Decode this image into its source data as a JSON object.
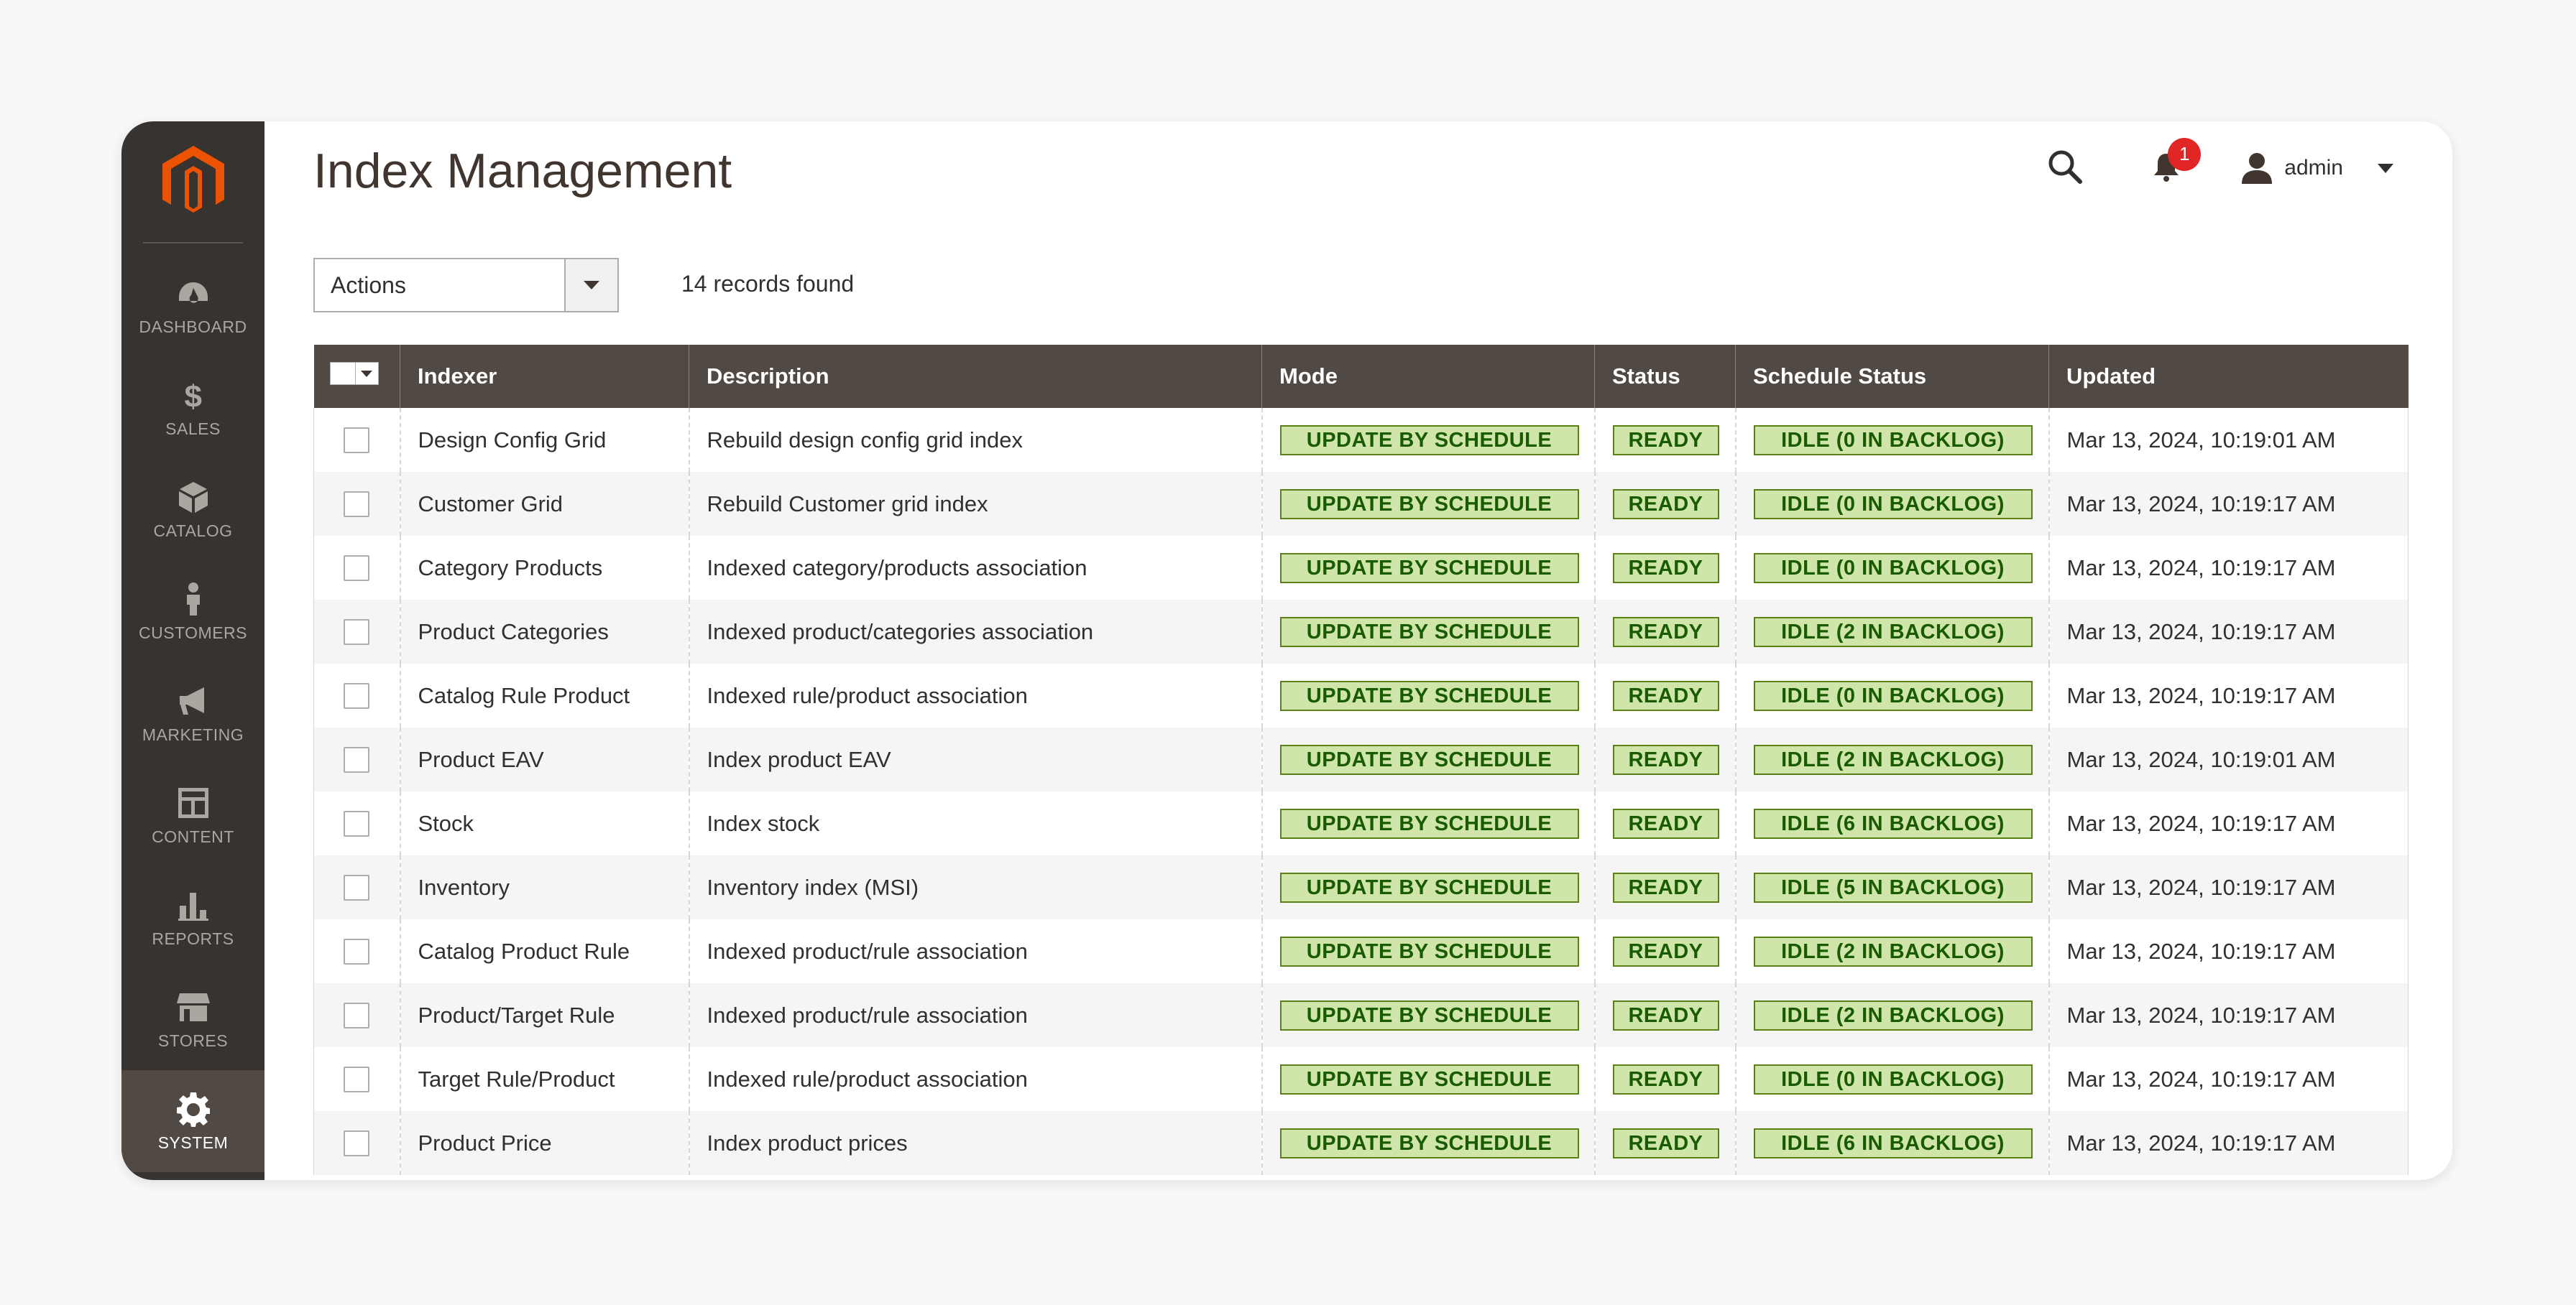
{
  "sidebar": {
    "items": [
      {
        "key": "dashboard",
        "label": "DASHBOARD",
        "icon": "dashboard-gauge-icon"
      },
      {
        "key": "sales",
        "label": "SALES",
        "icon": "dollar-icon"
      },
      {
        "key": "catalog",
        "label": "CATALOG",
        "icon": "box-icon"
      },
      {
        "key": "customers",
        "label": "CUSTOMERS",
        "icon": "person-icon"
      },
      {
        "key": "marketing",
        "label": "MARKETING",
        "icon": "megaphone-icon"
      },
      {
        "key": "content",
        "label": "CONTENT",
        "icon": "layout-icon"
      },
      {
        "key": "reports",
        "label": "REPORTS",
        "icon": "bar-chart-icon"
      },
      {
        "key": "stores",
        "label": "STORES",
        "icon": "storefront-icon"
      },
      {
        "key": "system",
        "label": "SYSTEM",
        "icon": "gear-icon",
        "active": true
      }
    ]
  },
  "header": {
    "title": "Index Management",
    "notifications_count": "1",
    "user_name": "admin"
  },
  "toolbar": {
    "actions_label": "Actions",
    "records_found": "14 records found"
  },
  "grid": {
    "columns": [
      "Indexer",
      "Description",
      "Mode",
      "Status",
      "Schedule Status",
      "Updated"
    ],
    "rows": [
      {
        "indexer": "Design Config Grid",
        "description": "Rebuild design config grid index",
        "mode": "UPDATE BY SCHEDULE",
        "status": "READY",
        "schedule": "IDLE (0 IN BACKLOG)",
        "updated": "Mar 13, 2024, 10:19:01 AM"
      },
      {
        "indexer": "Customer Grid",
        "description": "Rebuild Customer grid index",
        "mode": "UPDATE BY SCHEDULE",
        "status": "READY",
        "schedule": "IDLE (0 IN BACKLOG)",
        "updated": "Mar 13, 2024, 10:19:17 AM"
      },
      {
        "indexer": "Category Products",
        "description": "Indexed category/products association",
        "mode": "UPDATE BY SCHEDULE",
        "status": "READY",
        "schedule": "IDLE (0 IN BACKLOG)",
        "updated": "Mar 13, 2024, 10:19:17 AM"
      },
      {
        "indexer": "Product Categories",
        "description": "Indexed product/categories association",
        "mode": "UPDATE BY SCHEDULE",
        "status": "READY",
        "schedule": "IDLE (2 IN BACKLOG)",
        "updated": "Mar 13, 2024, 10:19:17 AM"
      },
      {
        "indexer": "Catalog Rule Product",
        "description": "Indexed rule/product association",
        "mode": "UPDATE BY SCHEDULE",
        "status": "READY",
        "schedule": "IDLE (0 IN BACKLOG)",
        "updated": "Mar 13, 2024, 10:19:17 AM"
      },
      {
        "indexer": "Product EAV",
        "description": "Index product EAV",
        "mode": "UPDATE BY SCHEDULE",
        "status": "READY",
        "schedule": "IDLE (2 IN BACKLOG)",
        "updated": "Mar 13, 2024, 10:19:01 AM"
      },
      {
        "indexer": "Stock",
        "description": "Index stock",
        "mode": "UPDATE BY SCHEDULE",
        "status": "READY",
        "schedule": "IDLE (6 IN BACKLOG)",
        "updated": "Mar 13, 2024, 10:19:17 AM"
      },
      {
        "indexer": "Inventory",
        "description": "Inventory index (MSI)",
        "mode": "UPDATE BY SCHEDULE",
        "status": "READY",
        "schedule": "IDLE (5 IN BACKLOG)",
        "updated": "Mar 13, 2024, 10:19:17 AM"
      },
      {
        "indexer": "Catalog Product Rule",
        "description": "Indexed product/rule association",
        "mode": "UPDATE BY SCHEDULE",
        "status": "READY",
        "schedule": "IDLE (2 IN BACKLOG)",
        "updated": "Mar 13, 2024, 10:19:17 AM"
      },
      {
        "indexer": "Product/Target Rule",
        "description": "Indexed product/rule association",
        "mode": "UPDATE BY SCHEDULE",
        "status": "READY",
        "schedule": "IDLE (2 IN BACKLOG)",
        "updated": "Mar 13, 2024, 10:19:17 AM"
      },
      {
        "indexer": "Target Rule/Product",
        "description": "Indexed rule/product association",
        "mode": "UPDATE BY SCHEDULE",
        "status": "READY",
        "schedule": "IDLE (0 IN BACKLOG)",
        "updated": "Mar 13, 2024, 10:19:17 AM"
      },
      {
        "indexer": "Product Price",
        "description": "Index product prices",
        "mode": "UPDATE BY SCHEDULE",
        "status": "READY",
        "schedule": "IDLE (6 IN BACKLOG)",
        "updated": "Mar 13, 2024, 10:19:17 AM"
      }
    ]
  },
  "colors": {
    "sidebar_bg": "#373330",
    "sidebar_active": "#514943",
    "header_row": "#514943",
    "brand": "#eb5202",
    "pill_bg": "#d0e5a9",
    "pill_text": "#185b00",
    "badge": "#e22626"
  }
}
